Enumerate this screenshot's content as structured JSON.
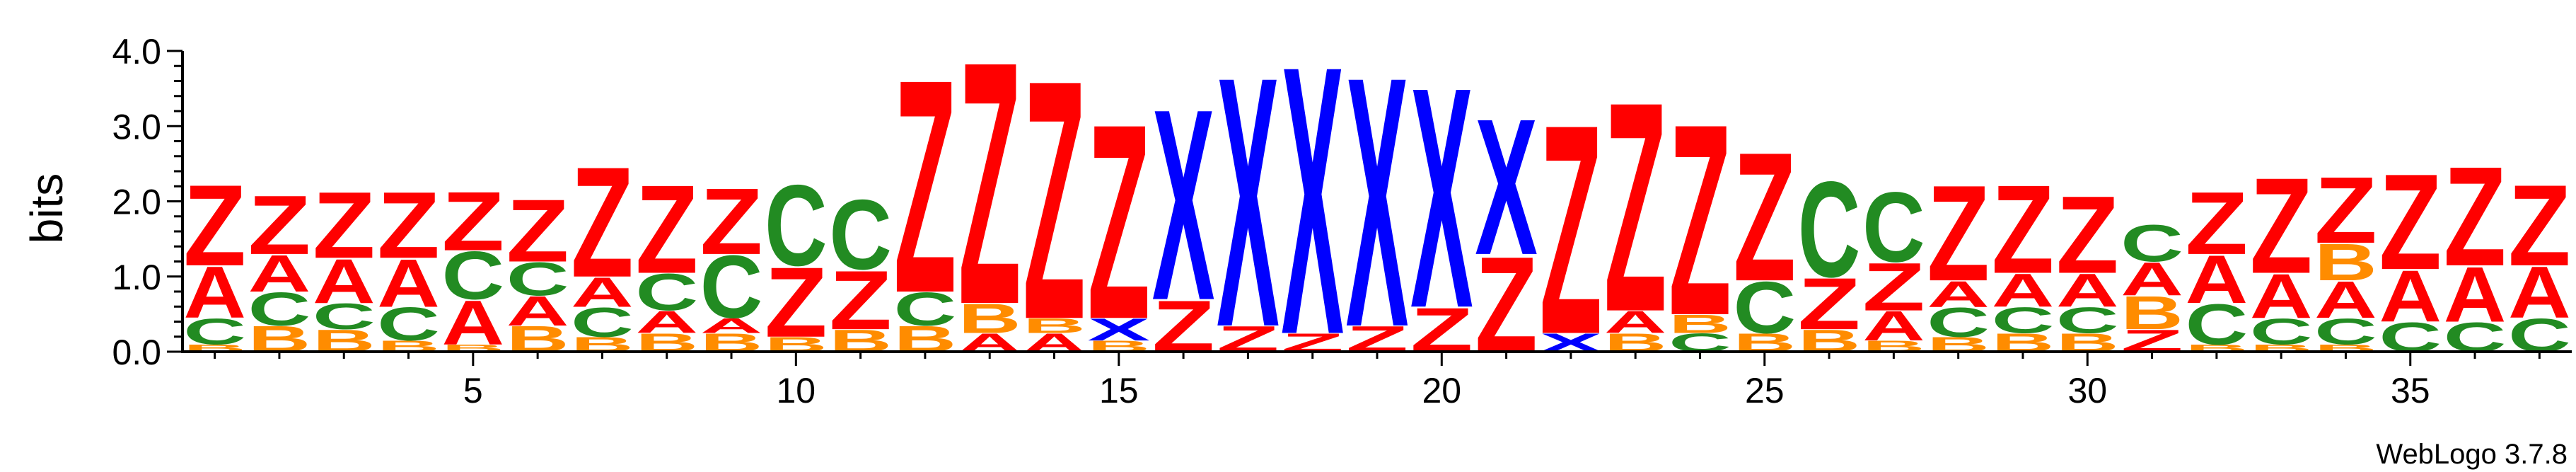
{
  "credit": "WebLogo 3.7.8",
  "chart_data": {
    "type": "sequence-logo",
    "ylabel": "bits",
    "ylim": [
      0,
      4.0
    ],
    "y_ticks": [
      "0.0",
      "1.0",
      "2.0",
      "3.0",
      "4.0"
    ],
    "y_tick_values": [
      0,
      1,
      2,
      3,
      4
    ],
    "x_tick_labels": [
      "5",
      "10",
      "15",
      "20",
      "25",
      "30",
      "35"
    ],
    "x_tick_positions": [
      5,
      10,
      15,
      20,
      25,
      30,
      35
    ],
    "colors": {
      "Z": "#ff0000",
      "A": "#ff0000",
      "C": "#228b22",
      "B": "#ff8c00",
      "X": "#0000ff"
    },
    "positions": [
      {
        "pos": 1,
        "stack": [
          [
            "B",
            0.1
          ],
          [
            "C",
            0.35
          ],
          [
            "A",
            0.7
          ],
          [
            "Z",
            1.1
          ]
        ]
      },
      {
        "pos": 2,
        "stack": [
          [
            "B",
            0.35
          ],
          [
            "C",
            0.45
          ],
          [
            "A",
            0.5
          ],
          [
            "Z",
            0.8
          ]
        ]
      },
      {
        "pos": 3,
        "stack": [
          [
            "B",
            0.3
          ],
          [
            "C",
            0.35
          ],
          [
            "A",
            0.6
          ],
          [
            "Z",
            0.9
          ]
        ]
      },
      {
        "pos": 4,
        "stack": [
          [
            "B",
            0.15
          ],
          [
            "C",
            0.45
          ],
          [
            "A",
            0.65
          ],
          [
            "Z",
            0.9
          ]
        ]
      },
      {
        "pos": 5,
        "stack": [
          [
            "B",
            0.1
          ],
          [
            "A",
            0.6
          ],
          [
            "C",
            0.65
          ],
          [
            "Z",
            0.8
          ]
        ]
      },
      {
        "pos": 6,
        "stack": [
          [
            "B",
            0.35
          ],
          [
            "A",
            0.4
          ],
          [
            "C",
            0.45
          ],
          [
            "Z",
            0.85
          ]
        ]
      },
      {
        "pos": 7,
        "stack": [
          [
            "B",
            0.2
          ],
          [
            "C",
            0.4
          ],
          [
            "A",
            0.4
          ],
          [
            "Z",
            1.5
          ]
        ]
      },
      {
        "pos": 8,
        "stack": [
          [
            "B",
            0.25
          ],
          [
            "A",
            0.3
          ],
          [
            "C",
            0.5
          ],
          [
            "Z",
            1.2
          ]
        ]
      },
      {
        "pos": 9,
        "stack": [
          [
            "B",
            0.25
          ],
          [
            "A",
            0.2
          ],
          [
            "C",
            0.85
          ],
          [
            "Z",
            0.9
          ]
        ]
      },
      {
        "pos": 10,
        "stack": [
          [
            "B",
            0.2
          ],
          [
            "Z",
            0.95
          ],
          [
            "C",
            1.1
          ]
        ]
      },
      {
        "pos": 11,
        "stack": [
          [
            "B",
            0.3
          ],
          [
            "Z",
            0.8
          ],
          [
            "C",
            0.95
          ]
        ]
      },
      {
        "pos": 12,
        "stack": [
          [
            "B",
            0.35
          ],
          [
            "C",
            0.45
          ],
          [
            "Z",
            2.9
          ]
        ]
      },
      {
        "pos": 13,
        "stack": [
          [
            "A",
            0.25
          ],
          [
            "B",
            0.4
          ],
          [
            "Z",
            3.3
          ]
        ]
      },
      {
        "pos": 14,
        "stack": [
          [
            "A",
            0.25
          ],
          [
            "B",
            0.2
          ],
          [
            "Z",
            3.25
          ]
        ]
      },
      {
        "pos": 15,
        "stack": [
          [
            "B",
            0.15
          ],
          [
            "X",
            0.3
          ],
          [
            "Z",
            2.65
          ]
        ]
      },
      {
        "pos": 16,
        "stack": [
          [
            "Z",
            0.7
          ],
          [
            "X",
            2.6
          ]
        ]
      },
      {
        "pos": 17,
        "stack": [
          [
            "Z",
            0.35
          ],
          [
            "X",
            3.4
          ]
        ]
      },
      {
        "pos": 18,
        "stack": [
          [
            "Z",
            0.25
          ],
          [
            "X",
            3.65
          ]
        ]
      },
      {
        "pos": 19,
        "stack": [
          [
            "Z",
            0.35
          ],
          [
            "X",
            3.4
          ]
        ]
      },
      {
        "pos": 20,
        "stack": [
          [
            "Z",
            0.6
          ],
          [
            "X",
            3.0
          ]
        ]
      },
      {
        "pos": 21,
        "stack": [
          [
            "Z",
            1.3
          ],
          [
            "X",
            1.85
          ]
        ]
      },
      {
        "pos": 22,
        "stack": [
          [
            "X",
            0.25
          ],
          [
            "Z",
            2.85
          ]
        ]
      },
      {
        "pos": 23,
        "stack": [
          [
            "B",
            0.25
          ],
          [
            "A",
            0.3
          ],
          [
            "Z",
            2.85
          ]
        ]
      },
      {
        "pos": 24,
        "stack": [
          [
            "C",
            0.25
          ],
          [
            "B",
            0.25
          ],
          [
            "Z",
            2.6
          ]
        ]
      },
      {
        "pos": 25,
        "stack": [
          [
            "B",
            0.25
          ],
          [
            "C",
            0.7
          ],
          [
            "Z",
            1.75
          ]
        ]
      },
      {
        "pos": 26,
        "stack": [
          [
            "B",
            0.3
          ],
          [
            "Z",
            0.7
          ],
          [
            "C",
            1.3
          ]
        ]
      },
      {
        "pos": 27,
        "stack": [
          [
            "B",
            0.15
          ],
          [
            "A",
            0.4
          ],
          [
            "Z",
            0.65
          ],
          [
            "C",
            0.95
          ]
        ]
      },
      {
        "pos": 28,
        "stack": [
          [
            "B",
            0.2
          ],
          [
            "C",
            0.4
          ],
          [
            "A",
            0.35
          ],
          [
            "Z",
            1.3
          ]
        ]
      },
      {
        "pos": 29,
        "stack": [
          [
            "B",
            0.25
          ],
          [
            "C",
            0.35
          ],
          [
            "A",
            0.45
          ],
          [
            "Z",
            1.2
          ]
        ]
      },
      {
        "pos": 30,
        "stack": [
          [
            "B",
            0.25
          ],
          [
            "C",
            0.35
          ],
          [
            "A",
            0.45
          ],
          [
            "Z",
            1.05
          ]
        ]
      },
      {
        "pos": 31,
        "stack": [
          [
            "Z",
            0.3
          ],
          [
            "B",
            0.45
          ],
          [
            "A",
            0.45
          ],
          [
            "C",
            0.5
          ]
        ]
      },
      {
        "pos": 32,
        "stack": [
          [
            "B",
            0.1
          ],
          [
            "C",
            0.55
          ],
          [
            "A",
            0.65
          ],
          [
            "Z",
            0.85
          ]
        ]
      },
      {
        "pos": 33,
        "stack": [
          [
            "B",
            0.1
          ],
          [
            "C",
            0.35
          ],
          [
            "A",
            0.6
          ],
          [
            "Z",
            1.3
          ]
        ]
      },
      {
        "pos": 34,
        "stack": [
          [
            "B",
            0.1
          ],
          [
            "C",
            0.35
          ],
          [
            "A",
            0.5
          ],
          [
            "B",
            0.5
          ],
          [
            "Z",
            0.9
          ]
        ]
      },
      {
        "pos": 35,
        "stack": [
          [
            "C",
            0.4
          ],
          [
            "A",
            0.7
          ],
          [
            "Z",
            1.3
          ]
        ]
      },
      {
        "pos": 36,
        "stack": [
          [
            "C",
            0.4
          ],
          [
            "A",
            0.75
          ],
          [
            "Z",
            1.35
          ]
        ]
      },
      {
        "pos": 37,
        "stack": [
          [
            "C",
            0.45
          ],
          [
            "A",
            0.7
          ],
          [
            "Z",
            1.1
          ]
        ]
      }
    ]
  }
}
